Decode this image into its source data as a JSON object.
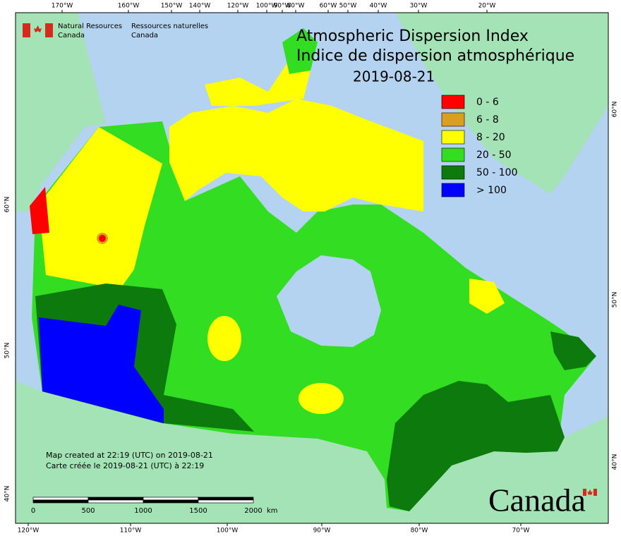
{
  "agency": {
    "en": [
      "Natural Resources",
      "Canada"
    ],
    "fr": [
      "Ressources naturelles",
      "Canada"
    ]
  },
  "title": [
    "Atmospheric Dispersion Index",
    "Indice de dispersion atmosphérique"
  ],
  "date": "2019-08-21",
  "legend": {
    "items": [
      {
        "label": "0 - 6",
        "color": "#ff0000"
      },
      {
        "label": "6 - 8",
        "color": "#d9a020"
      },
      {
        "label": "8 - 20",
        "color": "#ffff00"
      },
      {
        "label": "20 - 50",
        "color": "#33dd22"
      },
      {
        "label": "50 - 100",
        "color": "#0c7a0c"
      },
      {
        "label": "> 100",
        "color": "#0000ff"
      }
    ]
  },
  "graticule": {
    "top": [
      "170°W",
      "160°W",
      "150°W",
      "140°W",
      "120°W",
      "100°W",
      "90°W",
      "80°W",
      "60°W",
      "50°W",
      "40°W",
      "30°W",
      "20°W"
    ],
    "bottom": [
      "120°W",
      "110°W",
      "100°W",
      "90°W",
      "80°W",
      "70°W"
    ],
    "left": [
      "60°N",
      "50°N",
      "40°N"
    ],
    "right": [
      "60°N",
      "50°N",
      "40°N"
    ]
  },
  "scale_bar": {
    "labels": [
      "0",
      "500",
      "1000",
      "1500",
      "2000"
    ],
    "unit": "km"
  },
  "notes": [
    "Map created at 22:19 (UTC) on 2019-08-21",
    "Carte créée le 2019-08-21 (UTC) à 22:19"
  ],
  "wordmark": "Canada"
}
